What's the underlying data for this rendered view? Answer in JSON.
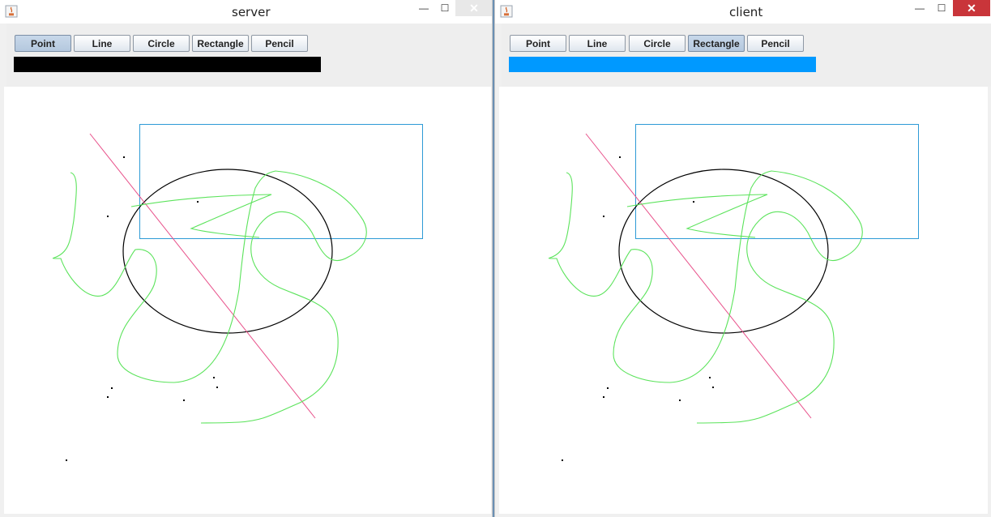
{
  "windows": [
    {
      "title": "server",
      "buttons": [
        "Point",
        "Line",
        "Circle",
        "Rectangle",
        "Pencil"
      ],
      "selected_tool": "Point",
      "color_bar": "#000000",
      "controls": {
        "minimize": "—",
        "maximize": "☐",
        "close": "✕"
      }
    },
    {
      "title": "client",
      "buttons": [
        "Point",
        "Line",
        "Circle",
        "Rectangle",
        "Pencil"
      ],
      "selected_tool": "Rectangle",
      "color_bar": "#0099ff",
      "controls": {
        "minimize": "—",
        "maximize": "☐",
        "close": "✕"
      }
    }
  ],
  "colors": {
    "line": "#e8508a",
    "rectangle": "#2d9ad6",
    "circle": "#000000",
    "pencil": "#5be35b",
    "point": "#000000",
    "close_button_server": "#e8e8e8",
    "close_button_client": "#c9353a"
  }
}
